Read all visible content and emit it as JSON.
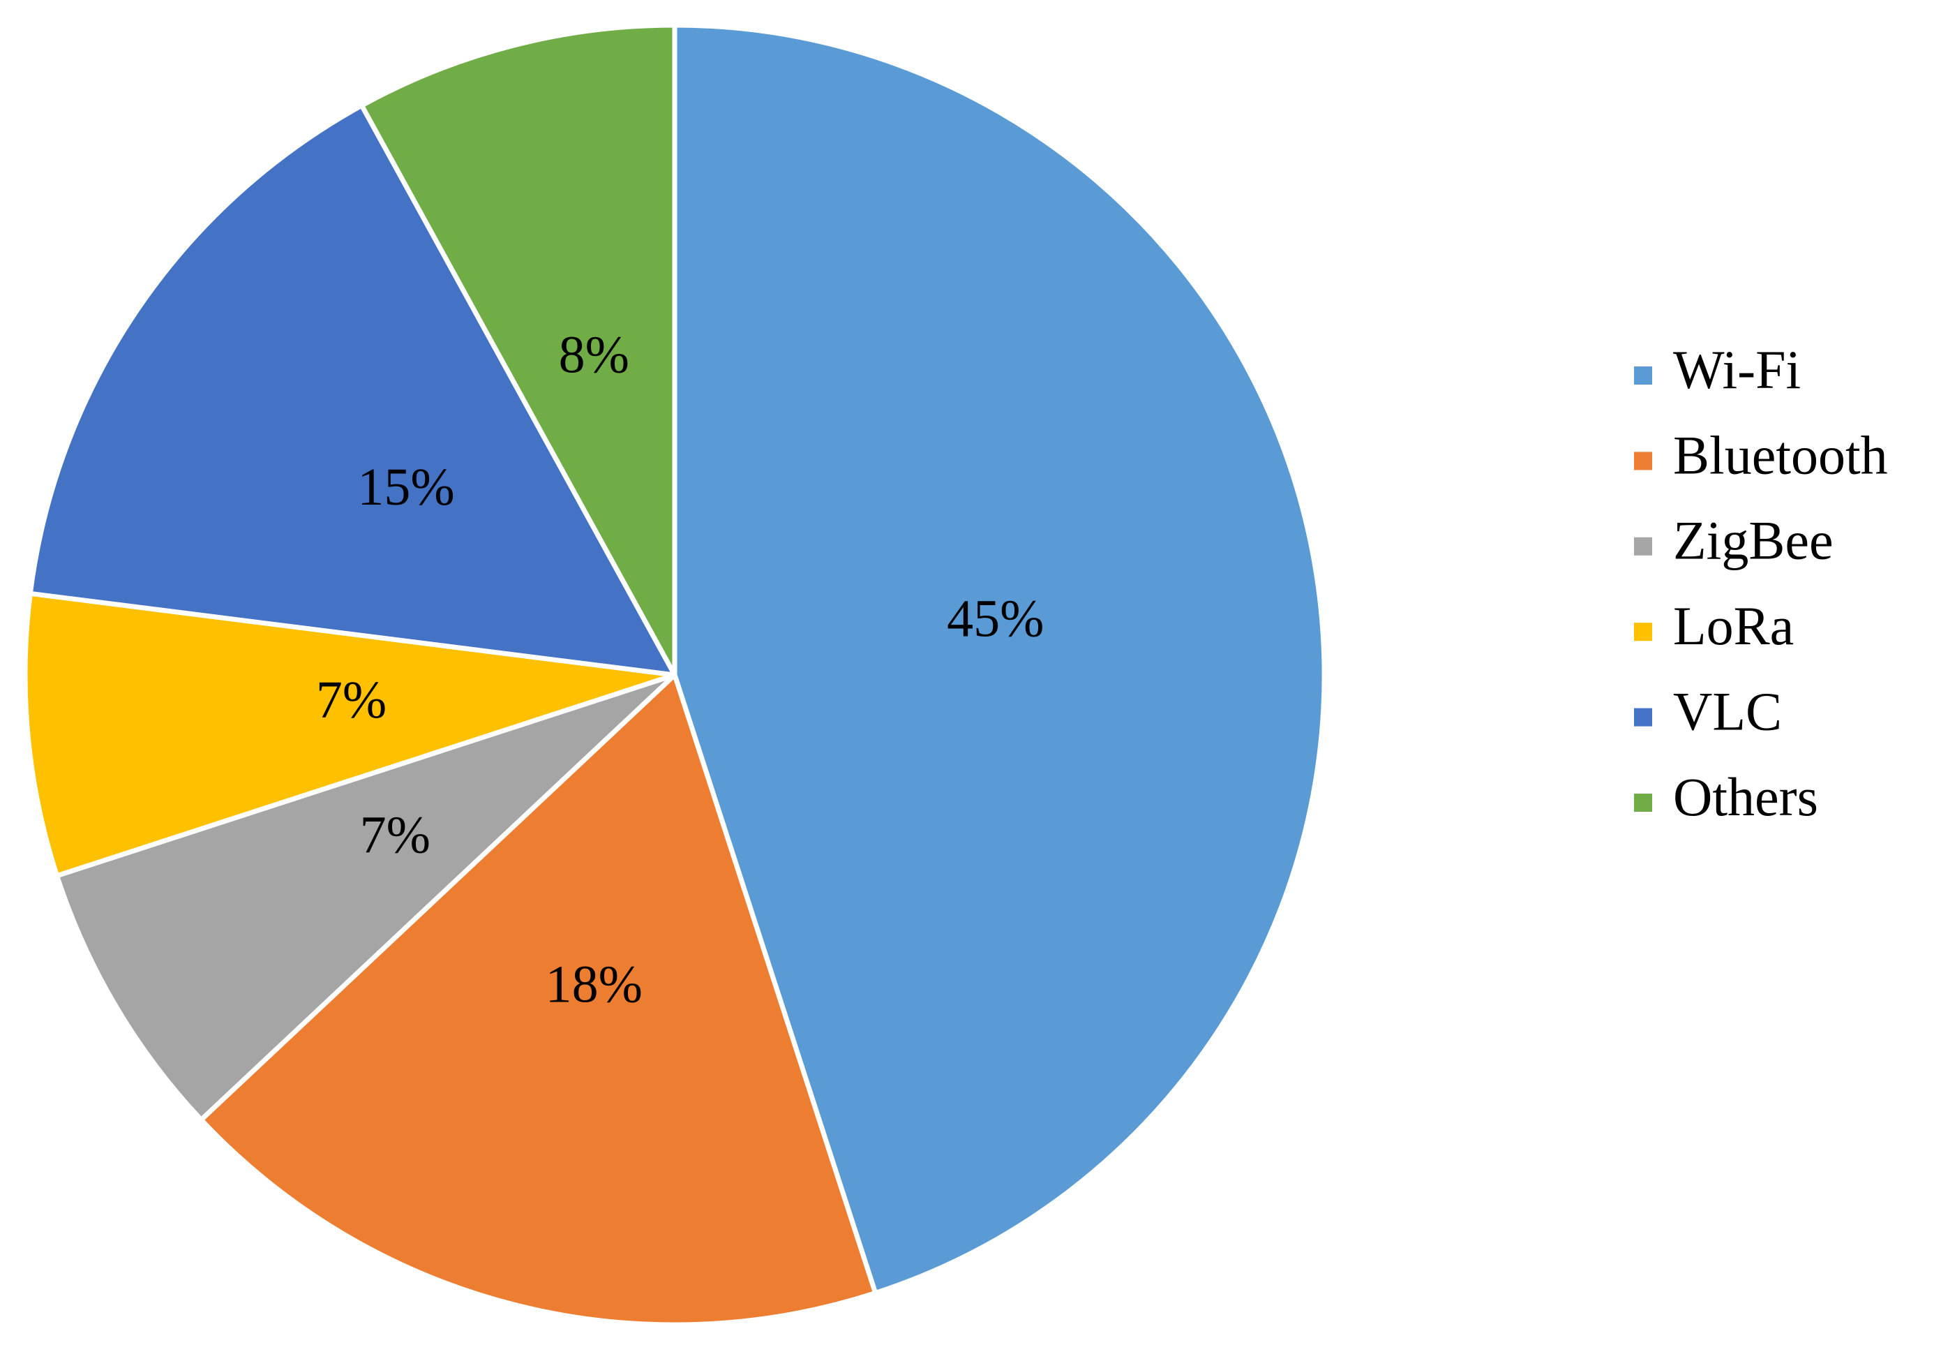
{
  "chart_data": {
    "type": "pie",
    "categories": [
      "Wi-Fi",
      "Bluetooth",
      "ZigBee",
      "LoRa",
      "VLC",
      "Others"
    ],
    "values": [
      45,
      18,
      7,
      7,
      15,
      8
    ],
    "value_labels": [
      "45%",
      "18%",
      "7%",
      "7%",
      "15%",
      "8%"
    ],
    "colors": [
      "#5b9bd5",
      "#ed7d31",
      "#a5a5a5",
      "#ffc000",
      "#4472c4",
      "#70ad47"
    ],
    "legend": "right"
  }
}
